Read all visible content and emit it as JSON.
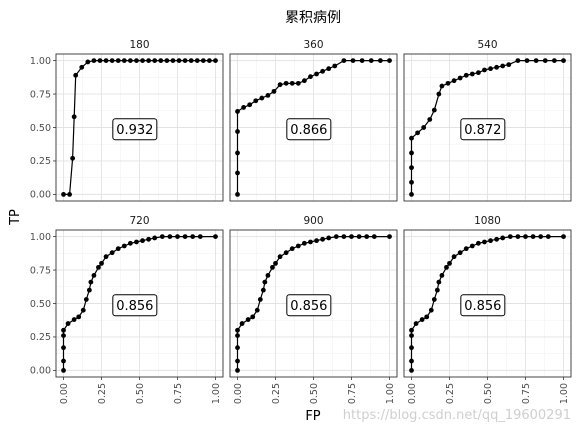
{
  "chart_data": {
    "type": "line",
    "title": "累积病例",
    "xlabel": "FP",
    "ylabel": "TP",
    "xlim": [
      0,
      1
    ],
    "ylim": [
      0,
      1
    ],
    "x_ticks": [
      "0.00",
      "0.25",
      "0.50",
      "0.75",
      "1.00"
    ],
    "y_ticks": [
      "0.00",
      "0.25",
      "0.50",
      "0.75",
      "1.00"
    ],
    "grid": true,
    "markers": true,
    "watermark": "https://blog.csdn.net/qq_19600291",
    "panels": [
      {
        "label": "180",
        "auc": "0.932",
        "points": [
          [
            0.0,
            0.0
          ],
          [
            0.04,
            0.0
          ],
          [
            0.06,
            0.27
          ],
          [
            0.07,
            0.58
          ],
          [
            0.08,
            0.89
          ],
          [
            0.12,
            0.95
          ],
          [
            0.16,
            0.99
          ],
          [
            0.2,
            1.0
          ],
          [
            0.24,
            1.0
          ],
          [
            0.28,
            1.0
          ],
          [
            0.32,
            1.0
          ],
          [
            0.36,
            1.0
          ],
          [
            0.4,
            1.0
          ],
          [
            0.44,
            1.0
          ],
          [
            0.48,
            1.0
          ],
          [
            0.52,
            1.0
          ],
          [
            0.56,
            1.0
          ],
          [
            0.6,
            1.0
          ],
          [
            0.64,
            1.0
          ],
          [
            0.68,
            1.0
          ],
          [
            0.72,
            1.0
          ],
          [
            0.76,
            1.0
          ],
          [
            0.8,
            1.0
          ],
          [
            0.84,
            1.0
          ],
          [
            0.88,
            1.0
          ],
          [
            0.92,
            1.0
          ],
          [
            0.96,
            1.0
          ],
          [
            1.0,
            1.0
          ]
        ]
      },
      {
        "label": "360",
        "auc": "0.866",
        "points": [
          [
            0.0,
            0.0
          ],
          [
            0.0,
            0.16
          ],
          [
            0.0,
            0.31
          ],
          [
            0.0,
            0.47
          ],
          [
            0.0,
            0.62
          ],
          [
            0.04,
            0.65
          ],
          [
            0.08,
            0.67
          ],
          [
            0.12,
            0.7
          ],
          [
            0.16,
            0.72
          ],
          [
            0.2,
            0.74
          ],
          [
            0.24,
            0.77
          ],
          [
            0.28,
            0.82
          ],
          [
            0.32,
            0.83
          ],
          [
            0.36,
            0.83
          ],
          [
            0.4,
            0.83
          ],
          [
            0.44,
            0.85
          ],
          [
            0.48,
            0.88
          ],
          [
            0.52,
            0.9
          ],
          [
            0.56,
            0.92
          ],
          [
            0.6,
            0.94
          ],
          [
            0.64,
            0.96
          ],
          [
            0.7,
            1.0
          ],
          [
            0.76,
            1.0
          ],
          [
            0.82,
            1.0
          ],
          [
            0.88,
            1.0
          ],
          [
            0.94,
            1.0
          ],
          [
            1.0,
            1.0
          ]
        ]
      },
      {
        "label": "540",
        "auc": "0.872",
        "points": [
          [
            0.0,
            0.0
          ],
          [
            0.0,
            0.09
          ],
          [
            0.0,
            0.2
          ],
          [
            0.0,
            0.31
          ],
          [
            0.0,
            0.42
          ],
          [
            0.04,
            0.46
          ],
          [
            0.08,
            0.5
          ],
          [
            0.12,
            0.56
          ],
          [
            0.15,
            0.63
          ],
          [
            0.18,
            0.75
          ],
          [
            0.2,
            0.81
          ],
          [
            0.24,
            0.83
          ],
          [
            0.28,
            0.85
          ],
          [
            0.32,
            0.87
          ],
          [
            0.36,
            0.89
          ],
          [
            0.4,
            0.9
          ],
          [
            0.44,
            0.91
          ],
          [
            0.48,
            0.93
          ],
          [
            0.52,
            0.94
          ],
          [
            0.56,
            0.95
          ],
          [
            0.6,
            0.96
          ],
          [
            0.64,
            0.97
          ],
          [
            0.7,
            1.0
          ],
          [
            0.76,
            1.0
          ],
          [
            0.82,
            1.0
          ],
          [
            0.88,
            1.0
          ],
          [
            0.94,
            1.0
          ],
          [
            1.0,
            1.0
          ]
        ]
      },
      {
        "label": "720",
        "auc": "0.856",
        "points": [
          [
            0.0,
            0.0
          ],
          [
            0.0,
            0.07
          ],
          [
            0.0,
            0.17
          ],
          [
            0.0,
            0.26
          ],
          [
            0.0,
            0.3
          ],
          [
            0.03,
            0.35
          ],
          [
            0.07,
            0.38
          ],
          [
            0.1,
            0.4
          ],
          [
            0.13,
            0.45
          ],
          [
            0.15,
            0.53
          ],
          [
            0.17,
            0.6
          ],
          [
            0.18,
            0.66
          ],
          [
            0.2,
            0.71
          ],
          [
            0.23,
            0.77
          ],
          [
            0.25,
            0.8
          ],
          [
            0.28,
            0.85
          ],
          [
            0.32,
            0.88
          ],
          [
            0.36,
            0.91
          ],
          [
            0.4,
            0.93
          ],
          [
            0.44,
            0.95
          ],
          [
            0.48,
            0.96
          ],
          [
            0.52,
            0.97
          ],
          [
            0.56,
            0.98
          ],
          [
            0.6,
            0.99
          ],
          [
            0.65,
            1.0
          ],
          [
            0.7,
            1.0
          ],
          [
            0.75,
            1.0
          ],
          [
            0.8,
            1.0
          ],
          [
            0.85,
            1.0
          ],
          [
            0.9,
            1.0
          ],
          [
            1.0,
            1.0
          ]
        ]
      },
      {
        "label": "900",
        "auc": "0.856",
        "points": [
          [
            0.0,
            0.0
          ],
          [
            0.0,
            0.07
          ],
          [
            0.0,
            0.17
          ],
          [
            0.0,
            0.26
          ],
          [
            0.0,
            0.3
          ],
          [
            0.03,
            0.35
          ],
          [
            0.07,
            0.38
          ],
          [
            0.1,
            0.4
          ],
          [
            0.13,
            0.45
          ],
          [
            0.15,
            0.53
          ],
          [
            0.17,
            0.6
          ],
          [
            0.18,
            0.66
          ],
          [
            0.2,
            0.71
          ],
          [
            0.23,
            0.77
          ],
          [
            0.25,
            0.8
          ],
          [
            0.28,
            0.85
          ],
          [
            0.32,
            0.88
          ],
          [
            0.36,
            0.91
          ],
          [
            0.4,
            0.93
          ],
          [
            0.44,
            0.95
          ],
          [
            0.48,
            0.96
          ],
          [
            0.52,
            0.97
          ],
          [
            0.56,
            0.98
          ],
          [
            0.6,
            0.99
          ],
          [
            0.65,
            1.0
          ],
          [
            0.7,
            1.0
          ],
          [
            0.75,
            1.0
          ],
          [
            0.8,
            1.0
          ],
          [
            0.85,
            1.0
          ],
          [
            0.9,
            1.0
          ],
          [
            1.0,
            1.0
          ]
        ]
      },
      {
        "label": "1080",
        "auc": "0.856",
        "points": [
          [
            0.0,
            0.0
          ],
          [
            0.0,
            0.07
          ],
          [
            0.0,
            0.17
          ],
          [
            0.0,
            0.26
          ],
          [
            0.0,
            0.3
          ],
          [
            0.03,
            0.35
          ],
          [
            0.07,
            0.38
          ],
          [
            0.1,
            0.4
          ],
          [
            0.13,
            0.45
          ],
          [
            0.15,
            0.53
          ],
          [
            0.17,
            0.6
          ],
          [
            0.18,
            0.66
          ],
          [
            0.2,
            0.71
          ],
          [
            0.23,
            0.77
          ],
          [
            0.25,
            0.8
          ],
          [
            0.28,
            0.85
          ],
          [
            0.32,
            0.88
          ],
          [
            0.36,
            0.91
          ],
          [
            0.4,
            0.93
          ],
          [
            0.44,
            0.95
          ],
          [
            0.48,
            0.96
          ],
          [
            0.52,
            0.97
          ],
          [
            0.56,
            0.98
          ],
          [
            0.6,
            0.99
          ],
          [
            0.65,
            1.0
          ],
          [
            0.7,
            1.0
          ],
          [
            0.75,
            1.0
          ],
          [
            0.8,
            1.0
          ],
          [
            0.85,
            1.0
          ],
          [
            0.9,
            1.0
          ],
          [
            1.0,
            1.0
          ]
        ]
      }
    ]
  }
}
